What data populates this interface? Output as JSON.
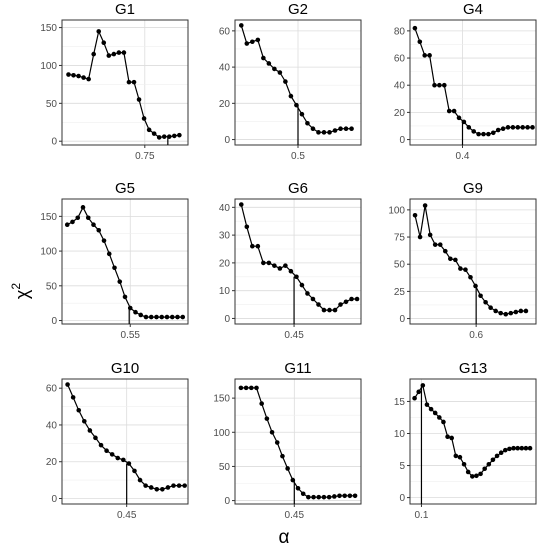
{
  "figure": {
    "ylabel": "χ",
    "ylabel_sup": "2",
    "xlabel": "α"
  },
  "chart_data": [
    {
      "type": "line",
      "title": "G1",
      "xlim": [
        0.635,
        0.81
      ],
      "ylim": [
        -5,
        160
      ],
      "grid": true,
      "xticks": [
        {
          "value": 0.75,
          "label": "0.75"
        }
      ],
      "yticks": [
        {
          "value": 0,
          "label": "0"
        },
        {
          "value": 50,
          "label": "50"
        },
        {
          "value": 100,
          "label": "100"
        },
        {
          "value": 150,
          "label": "150"
        }
      ],
      "vline": 0.782,
      "x": [
        0.644,
        0.651,
        0.658,
        0.665,
        0.672,
        0.679,
        0.686,
        0.693,
        0.7,
        0.707,
        0.714,
        0.721,
        0.728,
        0.735,
        0.742,
        0.749,
        0.756,
        0.763,
        0.77,
        0.777,
        0.784,
        0.791,
        0.798
      ],
      "y": [
        88,
        87,
        86,
        84,
        82,
        115,
        145,
        130,
        113,
        115,
        117,
        117,
        78,
        78,
        55,
        30,
        15,
        10,
        5,
        6,
        6,
        7,
        8
      ]
    },
    {
      "type": "line",
      "title": "G2",
      "xlim": [
        0.42,
        0.58
      ],
      "ylim": [
        -3,
        66
      ],
      "grid": true,
      "xticks": [
        {
          "value": 0.5,
          "label": "0.5"
        }
      ],
      "yticks": [
        {
          "value": 0,
          "label": "0"
        },
        {
          "value": 20,
          "label": "20"
        },
        {
          "value": 40,
          "label": "40"
        },
        {
          "value": 60,
          "label": "60"
        }
      ],
      "vline": 0.5,
      "x": [
        0.428,
        0.435,
        0.442,
        0.449,
        0.456,
        0.463,
        0.47,
        0.477,
        0.484,
        0.491,
        0.498,
        0.505,
        0.512,
        0.519,
        0.526,
        0.533,
        0.54,
        0.547,
        0.554,
        0.561,
        0.568
      ],
      "y": [
        63,
        53,
        54,
        55,
        45,
        42,
        39,
        37,
        32,
        24,
        19,
        14,
        9,
        6,
        4,
        4,
        4,
        5,
        6,
        6,
        6
      ]
    },
    {
      "type": "line",
      "title": "G4",
      "xlim": [
        0.325,
        0.505
      ],
      "ylim": [
        -4,
        88
      ],
      "grid": true,
      "xticks": [
        {
          "value": 0.4,
          "label": "0.4"
        }
      ],
      "yticks": [
        {
          "value": 0,
          "label": "0"
        },
        {
          "value": 20,
          "label": "20"
        },
        {
          "value": 40,
          "label": "40"
        },
        {
          "value": 60,
          "label": "60"
        },
        {
          "value": 80,
          "label": "80"
        }
      ],
      "vline": 0.4,
      "x": [
        0.332,
        0.339,
        0.346,
        0.353,
        0.36,
        0.367,
        0.374,
        0.381,
        0.388,
        0.395,
        0.402,
        0.409,
        0.416,
        0.423,
        0.43,
        0.437,
        0.444,
        0.451,
        0.458,
        0.465,
        0.472,
        0.479,
        0.486,
        0.493,
        0.5
      ],
      "y": [
        82,
        72,
        62,
        62,
        40,
        40,
        40,
        21,
        21,
        16,
        13,
        9,
        6,
        4,
        4,
        4,
        5,
        7,
        8,
        9,
        9,
        9,
        9,
        9,
        9
      ]
    },
    {
      "type": "line",
      "title": "G5",
      "xlim": [
        0.485,
        0.605
      ],
      "ylim": [
        -5,
        175
      ],
      "grid": true,
      "xticks": [
        {
          "value": 0.55,
          "label": "0.55"
        }
      ],
      "yticks": [
        {
          "value": 0,
          "label": "0"
        },
        {
          "value": 50,
          "label": "50"
        },
        {
          "value": 100,
          "label": "100"
        },
        {
          "value": 150,
          "label": "150"
        }
      ],
      "vline": 0.549,
      "x": [
        0.49,
        0.495,
        0.5,
        0.505,
        0.51,
        0.515,
        0.52,
        0.525,
        0.53,
        0.535,
        0.54,
        0.545,
        0.55,
        0.555,
        0.56,
        0.565,
        0.57,
        0.575,
        0.58,
        0.585,
        0.59,
        0.595,
        0.6
      ],
      "y": [
        138,
        142,
        148,
        163,
        148,
        138,
        130,
        115,
        96,
        76,
        56,
        34,
        18,
        12,
        8,
        5,
        5,
        5,
        5,
        5,
        5,
        5,
        5
      ]
    },
    {
      "type": "line",
      "title": "G6",
      "xlim": [
        0.375,
        0.535
      ],
      "ylim": [
        -2,
        43
      ],
      "grid": true,
      "xticks": [
        {
          "value": 0.45,
          "label": "0.45"
        }
      ],
      "yticks": [
        {
          "value": 0,
          "label": "0"
        },
        {
          "value": 10,
          "label": "10"
        },
        {
          "value": 20,
          "label": "20"
        },
        {
          "value": 30,
          "label": "30"
        },
        {
          "value": 40,
          "label": "40"
        }
      ],
      "vline": 0.45,
      "x": [
        0.383,
        0.39,
        0.397,
        0.404,
        0.411,
        0.418,
        0.425,
        0.432,
        0.439,
        0.446,
        0.453,
        0.46,
        0.467,
        0.474,
        0.481,
        0.488,
        0.495,
        0.502,
        0.509,
        0.516,
        0.523,
        0.53
      ],
      "y": [
        41,
        33,
        26,
        26,
        20,
        20,
        19,
        18,
        19,
        17,
        15,
        12,
        9,
        7,
        5,
        3,
        3,
        3,
        5,
        6,
        7,
        7
      ]
    },
    {
      "type": "line",
      "title": "G9",
      "xlim": [
        0.495,
        0.695
      ],
      "ylim": [
        -5,
        110
      ],
      "grid": true,
      "xticks": [
        {
          "value": 0.6,
          "label": "0.6"
        }
      ],
      "yticks": [
        {
          "value": 0,
          "label": "0"
        },
        {
          "value": 25,
          "label": "25"
        },
        {
          "value": 50,
          "label": "50"
        },
        {
          "value": 75,
          "label": "75"
        },
        {
          "value": 100,
          "label": "100"
        }
      ],
      "vline": 0.6,
      "x": [
        0.503,
        0.511,
        0.519,
        0.527,
        0.535,
        0.543,
        0.551,
        0.559,
        0.567,
        0.575,
        0.583,
        0.591,
        0.599,
        0.607,
        0.615,
        0.623,
        0.631,
        0.639,
        0.647,
        0.655,
        0.663,
        0.671,
        0.679
      ],
      "y": [
        95,
        75,
        104,
        77,
        68,
        68,
        62,
        55,
        54,
        46,
        45,
        38,
        30,
        21,
        15,
        10,
        7,
        5,
        4,
        5,
        6,
        7,
        7
      ]
    },
    {
      "type": "line",
      "title": "G10",
      "xlim": [
        0.392,
        0.505
      ],
      "ylim": [
        -3,
        65
      ],
      "grid": true,
      "xticks": [
        {
          "value": 0.45,
          "label": "0.45"
        }
      ],
      "yticks": [
        {
          "value": 0,
          "label": "0"
        },
        {
          "value": 20,
          "label": "20"
        },
        {
          "value": 40,
          "label": "40"
        },
        {
          "value": 60,
          "label": "60"
        }
      ],
      "vline": 0.45,
      "x": [
        0.397,
        0.402,
        0.407,
        0.412,
        0.417,
        0.422,
        0.427,
        0.432,
        0.437,
        0.442,
        0.447,
        0.452,
        0.457,
        0.462,
        0.467,
        0.472,
        0.477,
        0.482,
        0.487,
        0.492,
        0.497,
        0.502
      ],
      "y": [
        62,
        55,
        48,
        42,
        37,
        33,
        29,
        26,
        24,
        22,
        21,
        19,
        15,
        10,
        7,
        6,
        5,
        5,
        6,
        7,
        7,
        7
      ]
    },
    {
      "type": "line",
      "title": "G11",
      "xlim": [
        0.37,
        0.54
      ],
      "ylim": [
        -5,
        178
      ],
      "grid": true,
      "xticks": [
        {
          "value": 0.45,
          "label": "0.45"
        }
      ],
      "yticks": [
        {
          "value": 0,
          "label": "0"
        },
        {
          "value": 50,
          "label": "50"
        },
        {
          "value": 100,
          "label": "100"
        },
        {
          "value": 150,
          "label": "150"
        }
      ],
      "vline": 0.45,
      "x": [
        0.378,
        0.385,
        0.392,
        0.399,
        0.406,
        0.413,
        0.42,
        0.427,
        0.434,
        0.441,
        0.448,
        0.455,
        0.462,
        0.469,
        0.476,
        0.483,
        0.49,
        0.497,
        0.504,
        0.511,
        0.518,
        0.525,
        0.532
      ],
      "y": [
        165,
        165,
        165,
        165,
        142,
        120,
        100,
        85,
        65,
        47,
        30,
        18,
        10,
        5,
        5,
        5,
        5,
        5,
        6,
        7,
        7,
        7,
        7
      ]
    },
    {
      "type": "line",
      "title": "G13",
      "xlim": [
        0.075,
        0.35
      ],
      "ylim": [
        -1,
        18.5
      ],
      "grid": true,
      "xticks": [
        {
          "value": 0.1,
          "label": "0.1"
        }
      ],
      "yticks": [
        {
          "value": 0,
          "label": "0"
        },
        {
          "value": 5,
          "label": "5"
        },
        {
          "value": 10,
          "label": "10"
        },
        {
          "value": 15,
          "label": "15"
        }
      ],
      "vline": 0.1,
      "x": [
        0.085,
        0.094,
        0.103,
        0.112,
        0.121,
        0.13,
        0.139,
        0.148,
        0.157,
        0.166,
        0.175,
        0.184,
        0.193,
        0.202,
        0.211,
        0.22,
        0.229,
        0.238,
        0.247,
        0.256,
        0.265,
        0.274,
        0.283,
        0.292,
        0.301,
        0.31,
        0.319,
        0.328,
        0.337
      ],
      "y": [
        15.5,
        16.5,
        17.5,
        14.5,
        13.8,
        13.2,
        12.5,
        11.8,
        9.5,
        9.3,
        6.5,
        6.3,
        5.2,
        4.0,
        3.3,
        3.4,
        3.7,
        4.5,
        5.2,
        5.9,
        6.5,
        7.0,
        7.4,
        7.6,
        7.7,
        7.7,
        7.7,
        7.7,
        7.7
      ]
    }
  ]
}
